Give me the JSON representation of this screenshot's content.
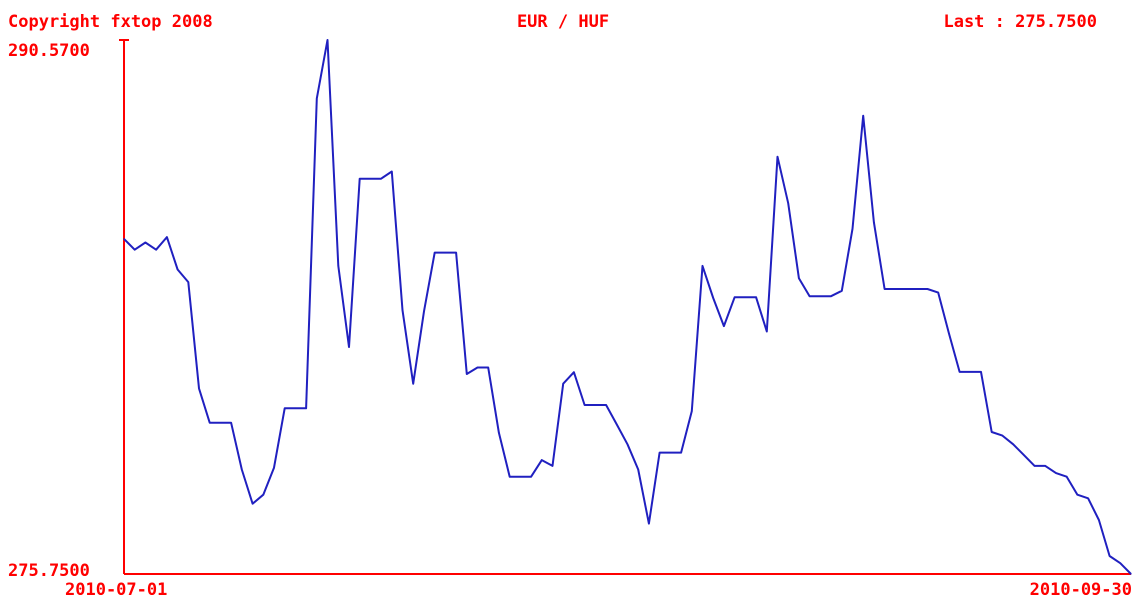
{
  "header": {
    "copyright": "Copyright fxtop 2008",
    "pair": "EUR / HUF",
    "last": "Last : 275.7500"
  },
  "colors": {
    "axis": "#ff0000",
    "text": "#ff0000",
    "line": "#2020c0",
    "background": "#ffffff"
  },
  "chart_data": {
    "type": "line",
    "title": "EUR / HUF",
    "xlabel": "",
    "ylabel": "",
    "x_start_label": "2010-07-01",
    "x_end_label": "2010-09-30",
    "ymax_label": "290.5700",
    "ymin_label": "275.7500",
    "ylim": [
      275.75,
      290.57
    ],
    "grid": false,
    "legend": "none",
    "series": [
      {
        "values": [
          285.05,
          284.75,
          284.95,
          284.75,
          285.1,
          284.2,
          283.85,
          280.9,
          279.95,
          279.95,
          279.95,
          278.65,
          277.7,
          277.95,
          278.7,
          280.35,
          280.35,
          280.35,
          288.95,
          290.57,
          284.3,
          282.05,
          286.72,
          286.72,
          286.72,
          286.92,
          283.07,
          281.03,
          283.04,
          284.67,
          284.67,
          284.67,
          281.3,
          281.48,
          281.48,
          279.67,
          278.45,
          278.45,
          278.45,
          278.91,
          278.75,
          281.03,
          281.35,
          280.44,
          280.44,
          280.44,
          279.9,
          279.35,
          278.65,
          277.15,
          279.12,
          279.12,
          279.12,
          280.27,
          284.3,
          283.41,
          282.63,
          283.43,
          283.43,
          283.43,
          282.48,
          287.33,
          286.04,
          283.96,
          283.46,
          283.46,
          283.46,
          283.61,
          285.33,
          288.47,
          285.51,
          283.66,
          283.66,
          283.66,
          283.66,
          283.66,
          283.56,
          282.43,
          281.36,
          281.36,
          281.36,
          279.69,
          279.59,
          279.35,
          279.05,
          278.75,
          278.75,
          278.55,
          278.45,
          277.95,
          277.85,
          277.25,
          276.25,
          276.05,
          275.75
        ]
      }
    ]
  }
}
